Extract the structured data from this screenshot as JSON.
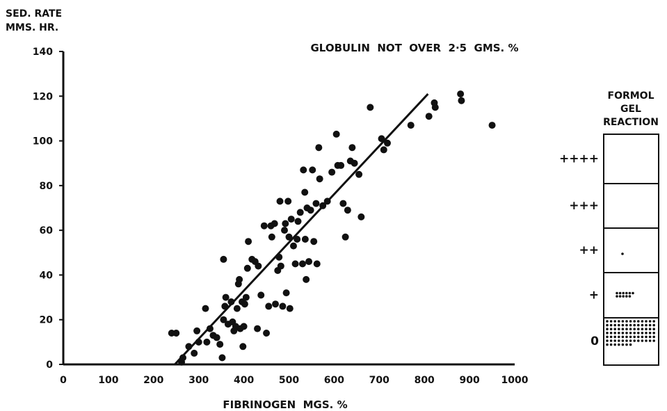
{
  "chart_data": {
    "type": "scatter",
    "title": "GLOBULIN  NOT  OVER  2·5  GMS. %",
    "ylabel_line1": "SED. RATE",
    "ylabel_line2": "MMS. HR.",
    "xlabel": "FIBRINOGEN  MGS. %",
    "xlim": [
      0,
      1000
    ],
    "ylim": [
      0,
      140
    ],
    "x_ticks": [
      0,
      100,
      200,
      300,
      400,
      500,
      600,
      700,
      800,
      900,
      1000
    ],
    "y_ticks": [
      0,
      20,
      40,
      60,
      80,
      100,
      120,
      140
    ],
    "grid": false,
    "points": [
      [
        240,
        14
      ],
      [
        250,
        14
      ],
      [
        262,
        1
      ],
      [
        265,
        3
      ],
      [
        278,
        8
      ],
      [
        290,
        5
      ],
      [
        296,
        15
      ],
      [
        300,
        10
      ],
      [
        315,
        25
      ],
      [
        318,
        10
      ],
      [
        325,
        16
      ],
      [
        332,
        13
      ],
      [
        340,
        12
      ],
      [
        347,
        9
      ],
      [
        352,
        3
      ],
      [
        355,
        47
      ],
      [
        355,
        20
      ],
      [
        358,
        26
      ],
      [
        360,
        30
      ],
      [
        365,
        18
      ],
      [
        372,
        28
      ],
      [
        375,
        19
      ],
      [
        378,
        15
      ],
      [
        382,
        17
      ],
      [
        385,
        25
      ],
      [
        388,
        36
      ],
      [
        390,
        38
      ],
      [
        392,
        16
      ],
      [
        396,
        28
      ],
      [
        398,
        8
      ],
      [
        400,
        17
      ],
      [
        402,
        27
      ],
      [
        405,
        30
      ],
      [
        408,
        43
      ],
      [
        410,
        55
      ],
      [
        418,
        47
      ],
      [
        425,
        46
      ],
      [
        430,
        16
      ],
      [
        432,
        44
      ],
      [
        438,
        31
      ],
      [
        445,
        62
      ],
      [
        450,
        14
      ],
      [
        455,
        26
      ],
      [
        460,
        62
      ],
      [
        462,
        57
      ],
      [
        468,
        63
      ],
      [
        470,
        27
      ],
      [
        475,
        42
      ],
      [
        478,
        48
      ],
      [
        480,
        73
      ],
      [
        482,
        44
      ],
      [
        486,
        26
      ],
      [
        490,
        60
      ],
      [
        492,
        63
      ],
      [
        494,
        32
      ],
      [
        498,
        73
      ],
      [
        500,
        57
      ],
      [
        502,
        25
      ],
      [
        505,
        65
      ],
      [
        510,
        53
      ],
      [
        514,
        45
      ],
      [
        518,
        56
      ],
      [
        520,
        64
      ],
      [
        525,
        68
      ],
      [
        530,
        45
      ],
      [
        532,
        87
      ],
      [
        535,
        77
      ],
      [
        536,
        56
      ],
      [
        538,
        38
      ],
      [
        540,
        70
      ],
      [
        544,
        46
      ],
      [
        548,
        69
      ],
      [
        552,
        87
      ],
      [
        555,
        55
      ],
      [
        560,
        72
      ],
      [
        562,
        45
      ],
      [
        566,
        97
      ],
      [
        568,
        83
      ],
      [
        575,
        71
      ],
      [
        585,
        73
      ],
      [
        595,
        86
      ],
      [
        605,
        103
      ],
      [
        608,
        89
      ],
      [
        615,
        89
      ],
      [
        620,
        72
      ],
      [
        625,
        57
      ],
      [
        630,
        69
      ],
      [
        636,
        91
      ],
      [
        640,
        97
      ],
      [
        645,
        90
      ],
      [
        655,
        85
      ],
      [
        660,
        66
      ],
      [
        680,
        115
      ],
      [
        705,
        101
      ],
      [
        710,
        96
      ],
      [
        718,
        99
      ],
      [
        770,
        107
      ],
      [
        810,
        111
      ],
      [
        822,
        117
      ],
      [
        824,
        115
      ],
      [
        880,
        121
      ],
      [
        882,
        118
      ],
      [
        950,
        107
      ]
    ],
    "regression_line": {
      "x": [
        247,
        808
      ],
      "y": [
        0,
        121
      ]
    },
    "inset": {
      "title_lines": [
        "FORMOL",
        "GEL",
        "REACTION"
      ],
      "categories": [
        "++++",
        "+++",
        "++",
        "+",
        "0"
      ],
      "counts": [
        0,
        0,
        1,
        11,
        85
      ]
    }
  }
}
